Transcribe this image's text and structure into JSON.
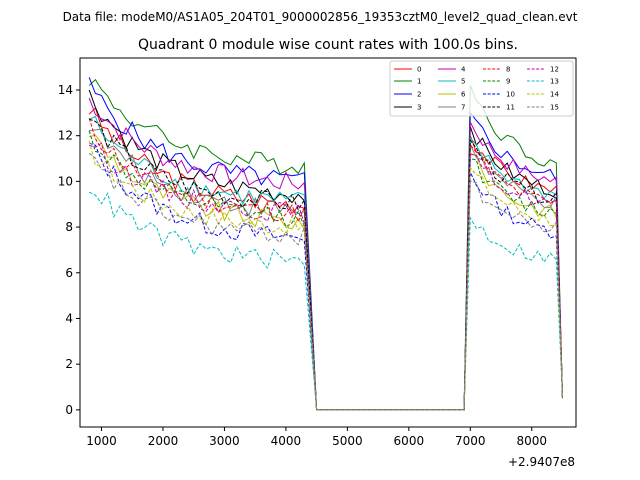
{
  "chart_data": {
    "type": "line",
    "suptitle": "Data file: modeM0/AS1A05_204T01_9000002856_19353cztM0_level2_quad_clean.evt",
    "title": "Quadrant 0 module wise count rates with 100.0s bins.",
    "xlabel": "",
    "ylabel": "",
    "x_offset_label": "+2.9407e8",
    "xlim": [
      650,
      8720
    ],
    "ylim": [
      -0.75,
      15.4
    ],
    "xticks": [
      1000,
      2000,
      3000,
      4000,
      5000,
      6000,
      7000,
      8000
    ],
    "xtick_labels": [
      "1000",
      "2000",
      "3000",
      "4000",
      "5000",
      "6000",
      "7000",
      "8000"
    ],
    "yticks": [
      0,
      2,
      4,
      6,
      8,
      10,
      12,
      14
    ],
    "ytick_labels": [
      "0",
      "2",
      "4",
      "6",
      "8",
      "10",
      "12",
      "14"
    ],
    "legend_position": "top-right",
    "x_structure": {
      "segment1": {
        "start": 800,
        "end": 4300,
        "step": 100
      },
      "drop_to": 4500,
      "gap_end": 6900,
      "segment2": {
        "start": 7000,
        "end": 8400,
        "step": 100
      },
      "final": 8500
    },
    "series": [
      {
        "name": "0",
        "color": "#ff0000",
        "dashed": false,
        "start": 13.2,
        "end": 9.0,
        "peak2": 12.0,
        "end2": 9.6,
        "final": 0.6
      },
      {
        "name": "1",
        "color": "#008000",
        "dashed": false,
        "start": 14.6,
        "end": 10.7,
        "peak2": 14.2,
        "end2": 10.8,
        "final": 0.5
      },
      {
        "name": "2",
        "color": "#0000ff",
        "dashed": false,
        "start": 14.2,
        "end": 10.0,
        "peak2": 13.0,
        "end2": 10.2,
        "final": 0.5
      },
      {
        "name": "3",
        "color": "#000000",
        "dashed": false,
        "start": 13.8,
        "end": 9.4,
        "peak2": 12.4,
        "end2": 9.6,
        "final": 0.5
      },
      {
        "name": "4",
        "color": "#bf00bf",
        "dashed": false,
        "start": 13.6,
        "end": 9.9,
        "peak2": 12.6,
        "end2": 10.0,
        "final": 0.5
      },
      {
        "name": "5",
        "color": "#00bfbf",
        "dashed": false,
        "start": 12.8,
        "end": 9.1,
        "peak2": 11.9,
        "end2": 9.4,
        "final": 0.6
      },
      {
        "name": "6",
        "color": "#bfbf00",
        "dashed": false,
        "start": 12.2,
        "end": 8.2,
        "peak2": 11.2,
        "end2": 8.6,
        "final": 0.6
      },
      {
        "name": "7",
        "color": "#808080",
        "dashed": false,
        "start": 12.6,
        "end": 8.7,
        "peak2": 11.6,
        "end2": 9.0,
        "final": 0.5
      },
      {
        "name": "8",
        "color": "#ff0000",
        "dashed": true,
        "start": 12.4,
        "end": 8.6,
        "peak2": 11.6,
        "end2": 9.0,
        "final": 0.6
      },
      {
        "name": "9",
        "color": "#008000",
        "dashed": true,
        "start": 12.0,
        "end": 8.4,
        "peak2": 11.0,
        "end2": 8.6,
        "final": 0.6
      },
      {
        "name": "10",
        "color": "#0000ff",
        "dashed": true,
        "start": 11.6,
        "end": 7.5,
        "peak2": 10.4,
        "end2": 7.8,
        "final": 0.5
      },
      {
        "name": "11",
        "color": "#000000",
        "dashed": true,
        "start": 12.8,
        "end": 9.0,
        "peak2": 11.8,
        "end2": 9.2,
        "final": 0.5
      },
      {
        "name": "12",
        "color": "#bf00bf",
        "dashed": true,
        "start": 11.8,
        "end": 8.6,
        "peak2": 11.2,
        "end2": 9.0,
        "final": 0.6
      },
      {
        "name": "13",
        "color": "#00bfbf",
        "dashed": true,
        "start": 9.9,
        "end": 6.5,
        "peak2": 8.4,
        "end2": 6.6,
        "final": 0.6
      },
      {
        "name": "14",
        "color": "#bfbf00",
        "dashed": true,
        "start": 11.4,
        "end": 8.0,
        "peak2": 10.6,
        "end2": 8.3,
        "final": 0.6
      },
      {
        "name": "15",
        "color": "#808080",
        "dashed": true,
        "start": 11.0,
        "end": 7.6,
        "peak2": 10.0,
        "end2": 7.9,
        "final": 0.5
      }
    ]
  }
}
